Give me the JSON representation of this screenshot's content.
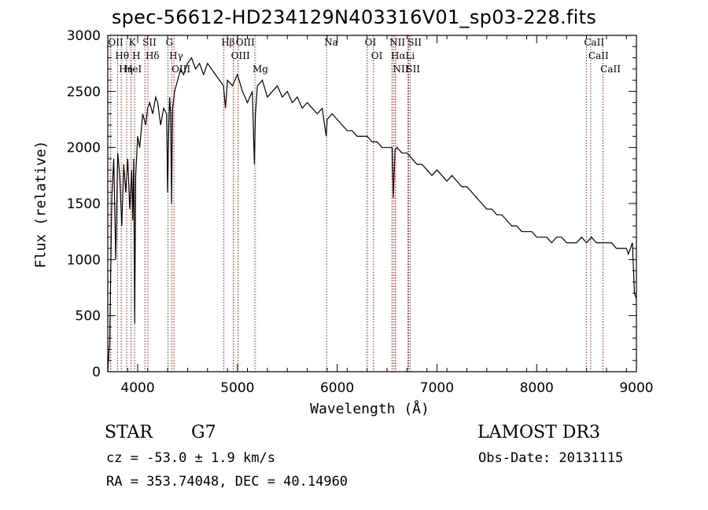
{
  "chart_data": {
    "type": "line",
    "title": "spec-56612-HD234129N403316V01_sp03-228.fits",
    "xlabel": "Wavelength (Å)",
    "ylabel": "Flux (relative)",
    "xlim": [
      3700,
      9000
    ],
    "ylim": [
      0,
      3000
    ],
    "xticks": [
      4000,
      5000,
      6000,
      7000,
      8000,
      9000
    ],
    "yticks": [
      0,
      500,
      1000,
      1500,
      2000,
      2500,
      3000
    ],
    "xtick_labels": [
      "4000",
      "5000",
      "6000",
      "7000",
      "8000",
      "9000"
    ],
    "ytick_labels": [
      "0",
      "500",
      "1000",
      "1500",
      "2000",
      "2500",
      "3000"
    ],
    "series": [
      {
        "name": "spectrum",
        "x": [
          3700,
          3720,
          3740,
          3760,
          3780,
          3800,
          3820,
          3840,
          3860,
          3880,
          3900,
          3920,
          3940,
          3950,
          3960,
          3970,
          3980,
          4000,
          4020,
          4050,
          4080,
          4100,
          4120,
          4150,
          4180,
          4200,
          4230,
          4260,
          4290,
          4300,
          4310,
          4320,
          4330,
          4340,
          4350,
          4370,
          4400,
          4430,
          4460,
          4500,
          4540,
          4580,
          4620,
          4660,
          4700,
          4740,
          4780,
          4820,
          4860,
          4880,
          4900,
          4950,
          5000,
          5050,
          5100,
          5150,
          5170,
          5180,
          5200,
          5250,
          5300,
          5350,
          5400,
          5450,
          5500,
          5550,
          5600,
          5650,
          5700,
          5750,
          5800,
          5850,
          5890,
          5900,
          5950,
          6000,
          6050,
          6100,
          6150,
          6200,
          6250,
          6300,
          6350,
          6400,
          6450,
          6500,
          6550,
          6563,
          6580,
          6600,
          6650,
          6700,
          6750,
          6800,
          6850,
          6900,
          6950,
          7000,
          7050,
          7100,
          7150,
          7200,
          7250,
          7300,
          7350,
          7400,
          7450,
          7500,
          7550,
          7600,
          7650,
          7700,
          7750,
          7800,
          7850,
          7900,
          7950,
          8000,
          8050,
          8100,
          8150,
          8200,
          8250,
          8300,
          8350,
          8400,
          8450,
          8500,
          8550,
          8600,
          8650,
          8700,
          8750,
          8800,
          8850,
          8900,
          8920,
          8940,
          8960,
          8980,
          9000
        ],
        "values": [
          0,
          280,
          1550,
          1900,
          1000,
          1950,
          1750,
          1300,
          1850,
          1600,
          1900,
          1450,
          1800,
          1350,
          1900,
          430,
          1750,
          2100,
          2000,
          2300,
          2200,
          2350,
          2400,
          2300,
          2450,
          2400,
          2200,
          2350,
          2300,
          1600,
          2100,
          2450,
          2300,
          1500,
          2350,
          2500,
          2600,
          2700,
          2650,
          2750,
          2800,
          2700,
          2750,
          2650,
          2750,
          2700,
          2650,
          2600,
          2550,
          2350,
          2600,
          2550,
          2650,
          2500,
          2400,
          2500,
          1850,
          2300,
          2550,
          2600,
          2450,
          2500,
          2550,
          2450,
          2500,
          2400,
          2450,
          2350,
          2400,
          2350,
          2300,
          2350,
          2100,
          2250,
          2300,
          2250,
          2200,
          2150,
          2150,
          2100,
          2100,
          2100,
          2050,
          2050,
          2000,
          2000,
          2000,
          1550,
          1980,
          2000,
          1950,
          1950,
          1900,
          1850,
          1850,
          1800,
          1750,
          1800,
          1750,
          1700,
          1750,
          1700,
          1650,
          1650,
          1600,
          1550,
          1500,
          1450,
          1450,
          1400,
          1400,
          1350,
          1300,
          1300,
          1250,
          1250,
          1250,
          1200,
          1200,
          1200,
          1150,
          1200,
          1200,
          1150,
          1150,
          1150,
          1200,
          1150,
          1200,
          1150,
          1150,
          1150,
          1150,
          1100,
          1100,
          1100,
          1050,
          1100,
          1150,
          700,
          650
        ],
        "color": "#000000"
      }
    ],
    "lines": [
      {
        "label": "OII",
        "wavelength": 3727
      },
      {
        "label": "Hθ",
        "wavelength": 3798
      },
      {
        "label": "Hη",
        "wavelength": 3835
      },
      {
        "label": "HeI",
        "wavelength": 3889
      },
      {
        "label": "K",
        "wavelength": 3934
      },
      {
        "label": "H",
        "wavelength": 3969
      },
      {
        "label": "SII",
        "wavelength": 4072
      },
      {
        "label": "Hδ",
        "wavelength": 4102
      },
      {
        "label": "G",
        "wavelength": 4304
      },
      {
        "label": "Hγ",
        "wavelength": 4340
      },
      {
        "label": "OIII",
        "wavelength": 4363
      },
      {
        "label": "Hβ",
        "wavelength": 4861
      },
      {
        "label": "OIII",
        "wavelength": 4959
      },
      {
        "label": "OIII",
        "wavelength": 5007
      },
      {
        "label": "Mg",
        "wavelength": 5175
      },
      {
        "label": "Na",
        "wavelength": 5894
      },
      {
        "label": "OI",
        "wavelength": 6300
      },
      {
        "label": "OI",
        "wavelength": 6364
      },
      {
        "label": "NII",
        "wavelength": 6548
      },
      {
        "label": "Hα",
        "wavelength": 6563
      },
      {
        "label": "NII",
        "wavelength": 6583
      },
      {
        "label": "Li",
        "wavelength": 6708
      },
      {
        "label": "SII",
        "wavelength": 6716
      },
      {
        "label": "SII",
        "wavelength": 6731
      },
      {
        "label": "CaII",
        "wavelength": 8498
      },
      {
        "label": "CaII",
        "wavelength": 8542
      },
      {
        "label": "CaII",
        "wavelength": 8662
      }
    ],
    "line_color": "#b00000",
    "grid": false
  },
  "info": {
    "object_class": "STAR",
    "subclass": "G7",
    "survey": "LAMOST DR3",
    "velocity": "cz = -53.0 ± 1.9 km/s",
    "obs_date": "Obs-Date: 20131115",
    "coords": "RA = 353.74048, DEC =  40.14960"
  }
}
